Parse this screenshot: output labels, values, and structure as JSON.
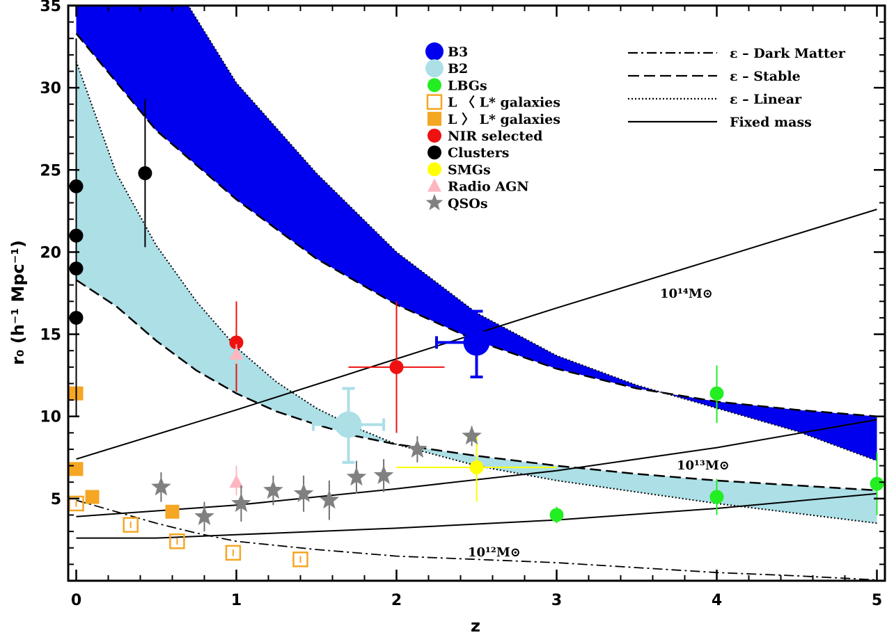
{
  "chart_data": {
    "type": "scatter",
    "xlabel": "z",
    "ylabel": "r₀ (h⁻¹ Mpc⁻¹)",
    "xlim": [
      -0.05,
      5.05
    ],
    "ylim": [
      0,
      35
    ],
    "x_ticks": [
      0,
      1,
      2,
      3,
      4,
      5
    ],
    "y_ticks": [
      5,
      10,
      15,
      20,
      25,
      30,
      35
    ],
    "legend_position": "top-center",
    "bands": [
      {
        "name": "B3",
        "color": "#0000ee",
        "upper": [
          [
            0,
            35
          ],
          [
            0.7,
            35
          ],
          [
            1,
            30.3
          ],
          [
            1.5,
            24.8
          ],
          [
            2,
            20.0
          ],
          [
            2.5,
            16.3
          ],
          [
            3,
            13.7
          ],
          [
            3.5,
            11.9
          ],
          [
            4,
            10.5
          ],
          [
            4.5,
            9.1
          ],
          [
            5,
            7.3
          ]
        ],
        "lower": [
          [
            0,
            33.3
          ],
          [
            0.5,
            27.4
          ],
          [
            1,
            23.2
          ],
          [
            1.5,
            19.6
          ],
          [
            2,
            16.8
          ],
          [
            2.5,
            14.6
          ],
          [
            3,
            12.9
          ],
          [
            3.5,
            11.7
          ],
          [
            4,
            10.9
          ],
          [
            4.5,
            10.4
          ],
          [
            5,
            10.0
          ]
        ]
      },
      {
        "name": "B2",
        "color": "#acdfe6",
        "upper": [
          [
            0,
            31.6
          ],
          [
            0.25,
            24.8
          ],
          [
            0.5,
            20.4
          ],
          [
            0.75,
            17.0
          ],
          [
            1,
            14.2
          ],
          [
            1.25,
            12.1
          ],
          [
            1.5,
            10.5
          ],
          [
            1.75,
            9.3
          ],
          [
            2,
            8.3
          ],
          [
            2.5,
            7.0
          ],
          [
            3,
            6.1
          ],
          [
            3.5,
            5.4
          ],
          [
            4,
            4.7
          ],
          [
            4.5,
            4.1
          ],
          [
            5,
            3.5
          ]
        ],
        "lower": [
          [
            0,
            18.3
          ],
          [
            0.25,
            16.7
          ],
          [
            0.5,
            14.6
          ],
          [
            0.75,
            12.8
          ],
          [
            1,
            11.4
          ],
          [
            1.25,
            10.3
          ],
          [
            1.5,
            9.5
          ],
          [
            1.75,
            8.8
          ],
          [
            2,
            8.3
          ],
          [
            2.5,
            7.6
          ],
          [
            3,
            7.0
          ],
          [
            3.5,
            6.5
          ],
          [
            4,
            6.1
          ],
          [
            4.5,
            5.8
          ],
          [
            5,
            5.5
          ]
        ]
      }
    ],
    "dark_matter_curve": {
      "name": "ε – Dark Matter",
      "points": [
        [
          0,
          4.9
        ],
        [
          0.25,
          4.2
        ],
        [
          0.5,
          3.5
        ],
        [
          0.75,
          2.9
        ],
        [
          1,
          2.4
        ],
        [
          1.5,
          1.9
        ],
        [
          2,
          1.5
        ],
        [
          2.5,
          1.3
        ],
        [
          3,
          1.1
        ],
        [
          3.5,
          0.8
        ],
        [
          4,
          0.5
        ],
        [
          4.5,
          0.3
        ],
        [
          5,
          0.05
        ]
      ]
    },
    "fixed_mass_lines": [
      {
        "label": "10¹⁴M⊙",
        "points": [
          [
            0,
            7.4
          ],
          [
            1,
            10.4
          ],
          [
            2,
            13.5
          ],
          [
            3,
            16.6
          ],
          [
            4,
            19.6
          ],
          [
            5,
            22.6
          ]
        ]
      },
      {
        "label": "10¹³M⊙",
        "points": [
          [
            0,
            3.9
          ],
          [
            1,
            4.6
          ],
          [
            2,
            5.6
          ],
          [
            3,
            6.7
          ],
          [
            4,
            8.1
          ],
          [
            5,
            9.8
          ]
        ]
      },
      {
        "label": "10¹²M⊙",
        "points": [
          [
            0,
            2.6
          ],
          [
            0.5,
            2.6
          ],
          [
            1,
            2.8
          ],
          [
            2,
            3.2
          ],
          [
            3,
            3.7
          ],
          [
            4,
            4.4
          ],
          [
            5,
            5.3
          ]
        ]
      }
    ],
    "legend": {
      "markers": [
        {
          "label": "B3",
          "color": "#0000ee",
          "symbol": "big-circle"
        },
        {
          "label": "B2",
          "color": "#acdfe6",
          "symbol": "big-circle"
        },
        {
          "label": "LBGs",
          "color": "#22ee22",
          "symbol": "circle"
        },
        {
          "label": "L 〈 L* galaxies",
          "color": "#f5a623",
          "symbol": "open-square"
        },
        {
          "label": "L 〉 L* galaxies",
          "color": "#f5a623",
          "symbol": "filled-square"
        },
        {
          "label": "NIR selected",
          "color": "#ee1111",
          "symbol": "circle"
        },
        {
          "label": "Clusters",
          "color": "#000000",
          "symbol": "circle"
        },
        {
          "label": "SMGs",
          "color": "#ffff00",
          "symbol": "circle"
        },
        {
          "label": "Radio AGN",
          "color": "#ffb6c1",
          "symbol": "triangle"
        },
        {
          "label": "QSOs",
          "color": "#808080",
          "symbol": "star"
        }
      ],
      "lines": [
        {
          "label": "ε – Dark Matter",
          "dash": "14,5,3,5"
        },
        {
          "label": "ε – Stable",
          "dash": "16,7"
        },
        {
          "label": "ε – Linear",
          "dash": "2,3"
        },
        {
          "label": "Fixed mass",
          "dash": ""
        }
      ]
    },
    "series": [
      {
        "name": "B3",
        "color": "#0000ee",
        "points": [
          {
            "x": 2.5,
            "y": 14.5,
            "xerr": 0.25,
            "yerr_lo": 2.1,
            "yerr_hi": 1.9
          }
        ]
      },
      {
        "name": "B2",
        "color": "#acdfe6",
        "points": [
          {
            "x": 1.7,
            "y": 9.5,
            "xerr": 0.22,
            "yerr_lo": 2.3,
            "yerr_hi": 2.2
          }
        ]
      },
      {
        "name": "LBGs",
        "color": "#22ee22",
        "points": [
          {
            "x": 3.0,
            "y": 4.0,
            "yerr_lo": 0.5,
            "yerr_hi": 0.5
          },
          {
            "x": 4.0,
            "y": 11.4,
            "yerr_lo": 1.8,
            "yerr_hi": 1.7
          },
          {
            "x": 4.0,
            "y": 5.1,
            "yerr_lo": 1.1,
            "yerr_hi": 1.1
          },
          {
            "x": 5.0,
            "y": 5.9,
            "yerr_lo": 1.9,
            "yerr_hi": 1.9
          }
        ]
      },
      {
        "name": "L 〈 L* galaxies",
        "color": "#f5a623",
        "points": [
          {
            "x": 0.0,
            "y": 4.7,
            "yerr_lo": 0.2,
            "yerr_hi": 0.2
          },
          {
            "x": 0.34,
            "y": 3.4,
            "yerr_lo": 0.2,
            "yerr_hi": 0.2
          },
          {
            "x": 0.63,
            "y": 2.4,
            "yerr_lo": 0.2,
            "yerr_hi": 0.2
          },
          {
            "x": 0.98,
            "y": 1.7,
            "yerr_lo": 0.2,
            "yerr_hi": 0.2
          },
          {
            "x": 1.4,
            "y": 1.3,
            "yerr_lo": 0.2,
            "yerr_hi": 0.2
          }
        ]
      },
      {
        "name": "L 〉 L* galaxies",
        "color": "#f5a623",
        "points": [
          {
            "x": 0.0,
            "y": 11.4,
            "yerr_lo": 1.0,
            "yerr_hi": 0.0
          },
          {
            "x": 0.0,
            "y": 6.8
          },
          {
            "x": 0.1,
            "y": 5.1
          },
          {
            "x": 0.6,
            "y": 4.2
          }
        ]
      },
      {
        "name": "NIR selected",
        "color": "#ee1111",
        "points": [
          {
            "x": 1.0,
            "y": 14.5,
            "yerr_lo": 3.0,
            "yerr_hi": 2.5
          },
          {
            "x": 2.0,
            "y": 13.0,
            "xerr": 0.3,
            "yerr_lo": 4.0,
            "yerr_hi": 4.0
          }
        ]
      },
      {
        "name": "Clusters",
        "color": "#000000",
        "points": [
          {
            "x": 0.0,
            "y": 24.0
          },
          {
            "x": 0.0,
            "y": 21.0
          },
          {
            "x": 0.0,
            "y": 19.0
          },
          {
            "x": 0.0,
            "y": 16.0,
            "yerr_lo": 6.0,
            "yerr_hi": 17.0
          },
          {
            "x": 0.43,
            "y": 24.8,
            "yerr_lo": 4.5,
            "yerr_hi": 4.5
          }
        ]
      },
      {
        "name": "SMGs",
        "color": "#ffff00",
        "points": [
          {
            "x": 2.5,
            "y": 6.9,
            "xerr": 0.5,
            "yerr_lo": 2.1,
            "yerr_hi": 2.1
          }
        ]
      },
      {
        "name": "Radio AGN",
        "color": "#ffb6c1",
        "points": [
          {
            "x": 1.0,
            "y": 13.8,
            "yerr_lo": 0.6,
            "yerr_hi": 0.6
          },
          {
            "x": 1.0,
            "y": 6.0,
            "yerr_lo": 0.8,
            "yerr_hi": 1.0
          }
        ]
      },
      {
        "name": "QSOs",
        "color": "#808080",
        "points": [
          {
            "x": 0.53,
            "y": 5.7,
            "yerr_lo": 0.9,
            "yerr_hi": 0.9
          },
          {
            "x": 0.8,
            "y": 3.9,
            "yerr_lo": 0.9,
            "yerr_hi": 0.9
          },
          {
            "x": 1.03,
            "y": 4.7,
            "yerr_lo": 1.1,
            "yerr_hi": 1.1
          },
          {
            "x": 1.23,
            "y": 5.5,
            "yerr_lo": 0.9,
            "yerr_hi": 0.9
          },
          {
            "x": 1.42,
            "y": 5.3,
            "yerr_lo": 1.1,
            "yerr_hi": 1.1
          },
          {
            "x": 1.58,
            "y": 4.9,
            "yerr_lo": 1.2,
            "yerr_hi": 1.2
          },
          {
            "x": 1.75,
            "y": 6.3,
            "yerr_lo": 1.0,
            "yerr_hi": 1.0
          },
          {
            "x": 1.92,
            "y": 6.4,
            "yerr_lo": 1.0,
            "yerr_hi": 1.0
          },
          {
            "x": 2.13,
            "y": 8.0,
            "yerr_lo": 0.8,
            "yerr_hi": 0.8
          },
          {
            "x": 2.47,
            "y": 8.8,
            "yerr_lo": 0.6,
            "yerr_hi": 0.6
          }
        ]
      }
    ]
  }
}
